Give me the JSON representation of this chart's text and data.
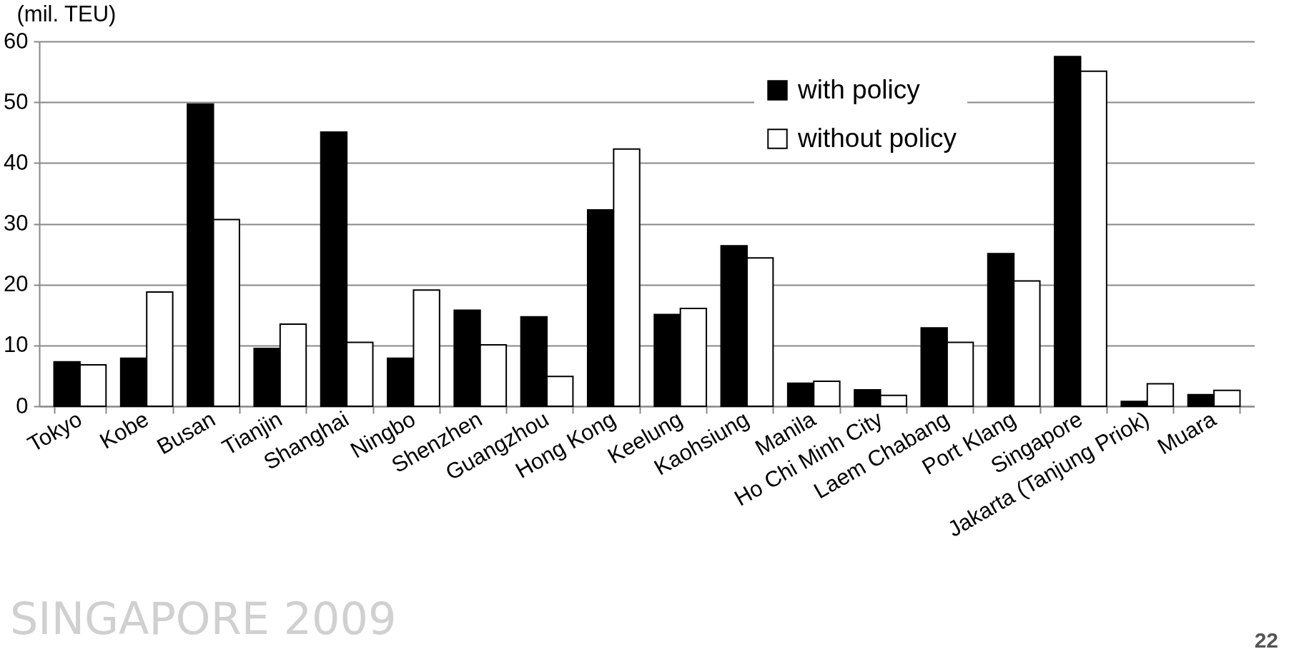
{
  "chart_data": {
    "type": "bar",
    "categories": [
      "Tokyo",
      "Kobe",
      "Busan",
      "Tianjin",
      "Shanghai",
      "Ningbo",
      "Shenzhen",
      "Guangzhou",
      "Hong Kong",
      "Keelung",
      "Kaohsiung",
      "Manila",
      "Ho Chi Minh City",
      "Laem Chabang",
      "Port Klang",
      "Singapore",
      "Jakarta (Tanjung Priok)",
      "Muara"
    ],
    "series": [
      {
        "name": "with policy",
        "color": "#000000",
        "values": [
          7.3,
          7.9,
          49.7,
          9.5,
          45.1,
          7.9,
          15.8,
          14.7,
          32.3,
          15.1,
          26.4,
          3.8,
          2.7,
          12.9,
          25.1,
          57.5,
          0.8,
          1.9
        ]
      },
      {
        "name": "without policy",
        "color": "#ffffff",
        "values": [
          6.8,
          18.8,
          30.7,
          13.5,
          10.5,
          19.1,
          10.1,
          4.9,
          42.3,
          16.1,
          24.4,
          4.1,
          1.8,
          10.5,
          20.6,
          55.1,
          3.7,
          2.6
        ]
      }
    ],
    "ylabel": "(mil. TEU)",
    "ylim": [
      0,
      60
    ],
    "yticks": [
      0,
      10,
      20,
      30,
      40,
      50,
      60
    ],
    "grid": "y",
    "legend": "top right",
    "annotations": [
      "SINGAPORE 2009",
      "22"
    ]
  }
}
